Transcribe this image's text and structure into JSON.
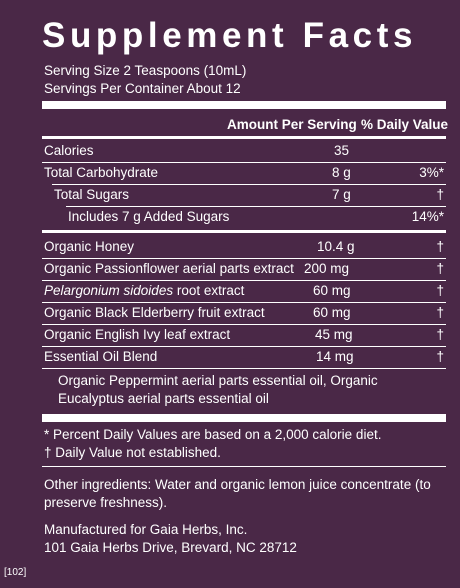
{
  "title": "Supplement Facts",
  "serving_size": "Serving Size 2 Teaspoons (10mL)",
  "servings_per_container": "Servings Per Container About 12",
  "header": {
    "amount": "Amount Per Serving",
    "dv": "% Daily Value"
  },
  "nutrients": [
    {
      "name": "Calories",
      "amount": "35",
      "dv": ""
    },
    {
      "name": "Total Carbohydrate",
      "amount": "8 g",
      "dv": "3%*"
    },
    {
      "name": "Total Sugars",
      "amount": "7 g",
      "dv": "†"
    },
    {
      "name": "Includes 7 g Added Sugars",
      "amount": "",
      "dv": "14%*"
    }
  ],
  "ingredients": [
    {
      "name": "Organic Honey",
      "name_rest": "",
      "amount": "10.4 g",
      "dv": "†"
    },
    {
      "name": "Organic Passionflower aerial parts extract",
      "name_rest": "",
      "amount": "200 mg",
      "dv": "†"
    },
    {
      "name": "Pelargonium sidoides",
      "name_rest": " root extract",
      "amount": "60 mg",
      "dv": "†"
    },
    {
      "name": "Organic Black Elderberry fruit extract",
      "name_rest": "",
      "amount": "60 mg",
      "dv": "†"
    },
    {
      "name": "Organic English Ivy leaf extract",
      "name_rest": "",
      "amount": "45 mg",
      "dv": "†"
    },
    {
      "name": "Essential Oil Blend",
      "name_rest": "",
      "amount": "14 mg",
      "dv": "†"
    }
  ],
  "blend_description": "Organic Peppermint aerial parts essential oil, Organic Eucalyptus aerial parts essential oil",
  "footnote_dv": "* Percent Daily Values are based on a 2,000 calorie diet.",
  "footnote_dagger": "† Daily Value not established.",
  "other_ingredients": "Other ingredients: Water and organic lemon juice concentrate (to preserve freshness).",
  "manufacturer_line1": "Manufactured for Gaia Herbs, Inc.",
  "manufacturer_line2": "101 Gaia Herbs Drive, Brevard, NC 28712",
  "code": "[102]"
}
